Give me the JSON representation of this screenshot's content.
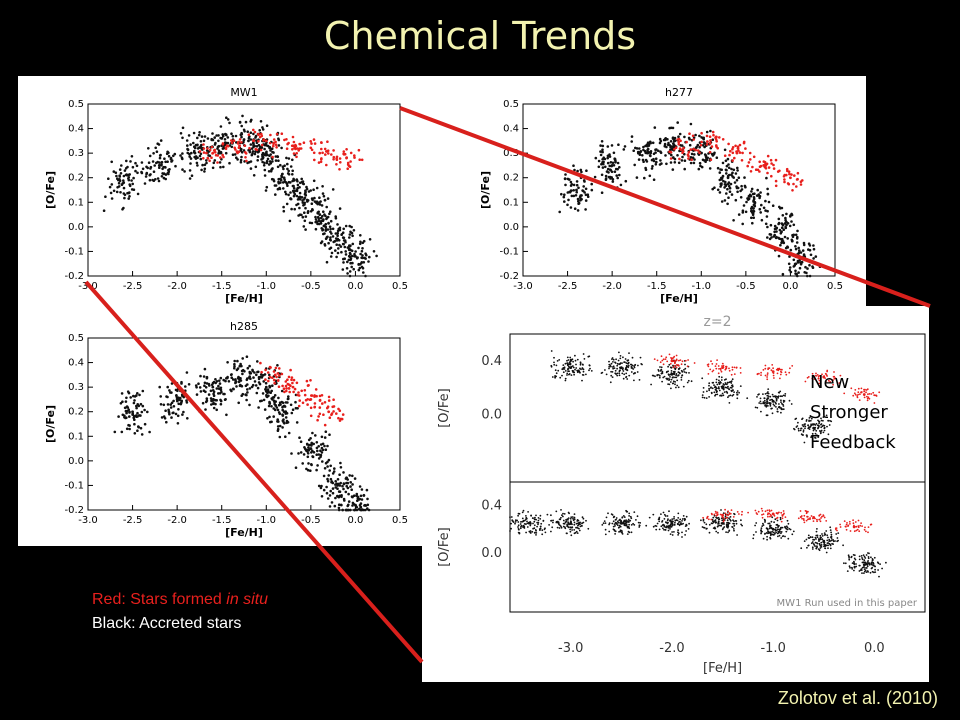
{
  "slide": {
    "title": "Chemical Trends",
    "legend_red_prefix": "Red: Stars formed ",
    "legend_red_italic": "in situ",
    "legend_black": "Black: Accreted stars",
    "citation": "Zolotov et al. (2010)",
    "annotation_lines": [
      "New",
      "Stronger",
      "Feedback"
    ]
  },
  "colors": {
    "title": "#f3f3b0",
    "red_points": "#e8201d",
    "connector": "#d8201c"
  },
  "chart_data": [
    {
      "type": "scatter",
      "title": "MW1",
      "xlabel": "[Fe/H]",
      "ylabel": "[O/Fe]",
      "xlim": [
        -3.0,
        0.5
      ],
      "ylim": [
        -0.2,
        0.5
      ],
      "xticks": [
        "-3.0",
        "-2.5",
        "-2.0",
        "-1.5",
        "-1.0",
        "-0.5",
        "0.0",
        "0.5"
      ],
      "yticks": [
        "-0.2",
        "-0.1",
        "0.0",
        "0.1",
        "0.2",
        "0.3",
        "0.4",
        "0.5"
      ],
      "series": [
        {
          "color": "black",
          "points": [
            [
              -2.6,
              0.18
            ],
            [
              -2.2,
              0.25
            ],
            [
              -1.8,
              0.3
            ],
            [
              -1.5,
              0.33
            ],
            [
              -1.2,
              0.35
            ],
            [
              -1.0,
              0.3
            ],
            [
              -0.8,
              0.2
            ],
            [
              -0.6,
              0.12
            ],
            [
              -0.4,
              0.05
            ],
            [
              -0.2,
              -0.05
            ],
            [
              0.0,
              -0.12
            ]
          ]
        },
        {
          "color": "red",
          "points": [
            [
              -1.6,
              0.3
            ],
            [
              -1.3,
              0.33
            ],
            [
              -1.0,
              0.35
            ],
            [
              -0.7,
              0.33
            ],
            [
              -0.4,
              0.3
            ],
            [
              -0.1,
              0.28
            ]
          ]
        }
      ]
    },
    {
      "type": "scatter",
      "title": "h277",
      "xlabel": "[Fe/H]",
      "ylabel": "[O/Fe]",
      "xlim": [
        -3.0,
        0.5
      ],
      "ylim": [
        -0.2,
        0.5
      ],
      "xticks": [
        "-3.0",
        "-2.5",
        "-2.0",
        "-1.5",
        "-1.0",
        "-0.5",
        "0.0",
        "0.5"
      ],
      "yticks": [
        "-0.2",
        "-0.1",
        "0.0",
        "0.1",
        "0.2",
        "0.3",
        "0.4",
        "0.5"
      ],
      "series": [
        {
          "color": "black",
          "points": [
            [
              -2.4,
              0.15
            ],
            [
              -2.0,
              0.25
            ],
            [
              -1.6,
              0.3
            ],
            [
              -1.3,
              0.33
            ],
            [
              -1.0,
              0.3
            ],
            [
              -0.7,
              0.2
            ],
            [
              -0.4,
              0.1
            ],
            [
              -0.1,
              -0.02
            ],
            [
              0.1,
              -0.12
            ]
          ]
        },
        {
          "color": "red",
          "points": [
            [
              -1.2,
              0.32
            ],
            [
              -0.9,
              0.34
            ],
            [
              -0.6,
              0.3
            ],
            [
              -0.3,
              0.25
            ],
            [
              0.0,
              0.2
            ]
          ]
        }
      ]
    },
    {
      "type": "scatter",
      "title": "h285",
      "xlabel": "[Fe/H]",
      "ylabel": "[O/Fe]",
      "xlim": [
        -3.0,
        0.5
      ],
      "ylim": [
        -0.2,
        0.5
      ],
      "xticks": [
        "-3.0",
        "-2.5",
        "-2.0",
        "-1.5",
        "-1.0",
        "-0.5",
        "0.0",
        "0.5"
      ],
      "yticks": [
        "-0.2",
        "-0.1",
        "0.0",
        "0.1",
        "0.2",
        "0.3",
        "0.4",
        "0.5"
      ],
      "series": [
        {
          "color": "black",
          "points": [
            [
              -2.5,
              0.2
            ],
            [
              -2.0,
              0.25
            ],
            [
              -1.6,
              0.3
            ],
            [
              -1.3,
              0.33
            ],
            [
              -1.0,
              0.3
            ],
            [
              -0.8,
              0.2
            ],
            [
              -0.5,
              0.05
            ],
            [
              -0.2,
              -0.1
            ],
            [
              0.0,
              -0.18
            ]
          ]
        },
        {
          "color": "red",
          "points": [
            [
              -0.9,
              0.35
            ],
            [
              -0.7,
              0.3
            ],
            [
              -0.5,
              0.25
            ],
            [
              -0.3,
              0.2
            ]
          ]
        }
      ]
    },
    {
      "type": "scatter",
      "title": "z=2",
      "ylabel": "[O/Fe]",
      "xlim": [
        -3.6,
        0.5
      ],
      "ylim": [
        -0.5,
        0.6
      ],
      "yticks": [
        "0.4",
        "0.0"
      ],
      "series": [
        {
          "color": "black",
          "points": [
            [
              -3.0,
              0.35
            ],
            [
              -2.5,
              0.35
            ],
            [
              -2.0,
              0.3
            ],
            [
              -1.5,
              0.2
            ],
            [
              -1.0,
              0.1
            ],
            [
              -0.6,
              -0.1
            ]
          ]
        },
        {
          "color": "red",
          "points": [
            [
              -2.0,
              0.4
            ],
            [
              -1.5,
              0.35
            ],
            [
              -1.0,
              0.32
            ],
            [
              -0.5,
              0.28
            ],
            [
              -0.1,
              0.15
            ]
          ]
        }
      ]
    },
    {
      "type": "scatter",
      "annotation": "MW1 Run used in this paper",
      "xlabel": "[Fe/H]",
      "ylabel": "[O/Fe]",
      "xlim": [
        -3.6,
        0.5
      ],
      "ylim": [
        -0.5,
        0.6
      ],
      "xticks": [
        "-3.0",
        "-2.0",
        "-1.0",
        "0.0"
      ],
      "yticks": [
        "0.4",
        "0.0"
      ],
      "series": [
        {
          "color": "black",
          "points": [
            [
              -3.4,
              0.25
            ],
            [
              -3.0,
              0.25
            ],
            [
              -2.5,
              0.25
            ],
            [
              -2.0,
              0.25
            ],
            [
              -1.5,
              0.25
            ],
            [
              -1.0,
              0.2
            ],
            [
              -0.5,
              0.1
            ],
            [
              -0.1,
              -0.1
            ]
          ]
        },
        {
          "color": "red",
          "points": [
            [
              -1.5,
              0.32
            ],
            [
              -1.0,
              0.33
            ],
            [
              -0.6,
              0.3
            ],
            [
              -0.2,
              0.22
            ]
          ]
        }
      ]
    }
  ]
}
